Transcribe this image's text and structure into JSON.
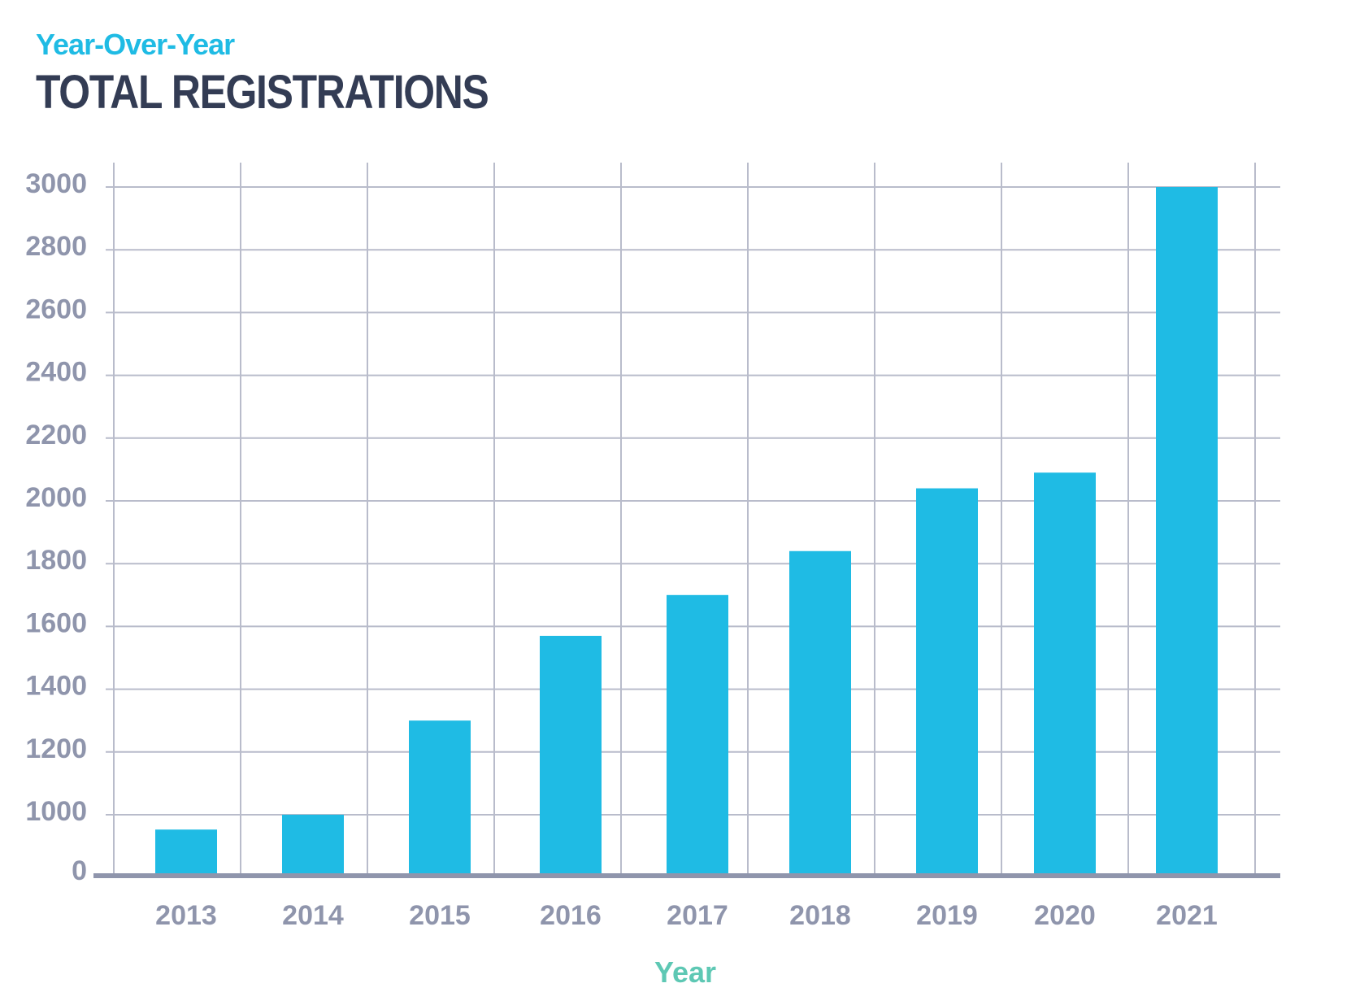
{
  "header": {
    "subtitle": "Year-Over-Year",
    "title": "TOTAL REGISTRATIONS"
  },
  "colors": {
    "bar": "#1fbbe4",
    "grid": "#b9bccb",
    "axis": "#8f95ac",
    "title": "#333c54",
    "subtitle": "#1fbbe4",
    "xlabel": "#5ec8b4"
  },
  "chart_data": {
    "type": "bar",
    "title": "TOTAL REGISTRATIONS",
    "subtitle": "Year-Over-Year",
    "xlabel": "Year",
    "ylabel": "",
    "categories": [
      "2013",
      "2014",
      "2015",
      "2016",
      "2017",
      "2018",
      "2019",
      "2020",
      "2021"
    ],
    "values": [
      750,
      1000,
      1300,
      1570,
      1700,
      1840,
      2040,
      2090,
      3000
    ],
    "y_ticks": [
      {
        "label": "0",
        "value": 0
      },
      {
        "label": "1000",
        "value": 1000
      },
      {
        "label": "1200",
        "value": 1200
      },
      {
        "label": "1400",
        "value": 1400
      },
      {
        "label": "1600",
        "value": 1600
      },
      {
        "label": "1800",
        "value": 1800
      },
      {
        "label": "2000",
        "value": 2000
      },
      {
        "label": "2200",
        "value": 2200
      },
      {
        "label": "2400",
        "value": 2400
      },
      {
        "label": "2600",
        "value": 2600
      },
      {
        "label": "2800",
        "value": 2800
      },
      {
        "label": "3000",
        "value": 3000
      }
    ],
    "grid": true,
    "legend": "none"
  }
}
